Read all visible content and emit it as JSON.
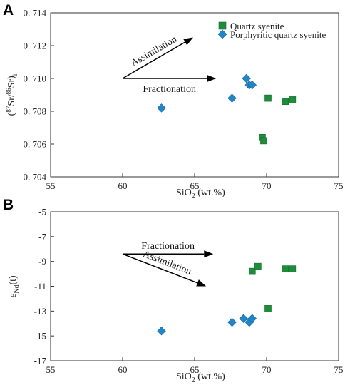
{
  "chart_data": [
    {
      "type": "scatter",
      "panel_label": "A",
      "xlabel_main": "SiO",
      "xlabel_sub": "2",
      "xlabel_tail": " (wt.%)",
      "ylabel_parts": [
        "(",
        "87",
        "Sr/",
        "86",
        "Sr)",
        "i"
      ],
      "xlim": [
        55,
        75
      ],
      "ylim": [
        0.704,
        0.714
      ],
      "x_ticks": [
        55,
        60,
        65,
        70,
        75
      ],
      "x_tick_labels": [
        "55",
        "60",
        "65",
        "70",
        "75"
      ],
      "y_ticks": [
        0.704,
        0.706,
        0.708,
        0.71,
        0.712,
        0.714
      ],
      "y_tick_labels": [
        "0. 704",
        "0. 706",
        "0. 708",
        "0. 710",
        "0. 712",
        "0. 714"
      ],
      "grid": false,
      "legend_placement": "top-right",
      "series": [
        {
          "name": "Quartz syenite",
          "marker": "square",
          "color": "#1e8c3a",
          "points": [
            {
              "x": 69.7,
              "y": 0.7064
            },
            {
              "x": 69.8,
              "y": 0.7062
            },
            {
              "x": 70.1,
              "y": 0.7088
            },
            {
              "x": 71.3,
              "y": 0.7086
            },
            {
              "x": 71.8,
              "y": 0.7087
            }
          ]
        },
        {
          "name": "Porphyritic quartz syenite",
          "marker": "diamond",
          "color": "#1f86c8",
          "points": [
            {
              "x": 62.7,
              "y": 0.7082
            },
            {
              "x": 67.6,
              "y": 0.7088
            },
            {
              "x": 68.6,
              "y": 0.71
            },
            {
              "x": 68.8,
              "y": 0.7096
            },
            {
              "x": 69.0,
              "y": 0.7096
            }
          ]
        }
      ],
      "annotations": [
        {
          "text": "Assimilation",
          "from": [
            60.0,
            0.71
          ],
          "to": [
            64.9,
            0.7125
          ],
          "text_side": "above"
        },
        {
          "text": "Fractionation",
          "from": [
            60.0,
            0.71
          ],
          "to": [
            66.5,
            0.71
          ],
          "text_side": "below"
        }
      ]
    },
    {
      "type": "scatter",
      "panel_label": "B",
      "xlabel_main": "SiO",
      "xlabel_sub": "2",
      "xlabel_tail": " (wt.%)",
      "ylabel_main": "ε",
      "ylabel_sub": "Nd",
      "ylabel_tail": "(t)",
      "xlim": [
        55,
        75
      ],
      "ylim": [
        -17,
        -5
      ],
      "x_ticks": [
        55,
        60,
        65,
        70,
        75
      ],
      "x_tick_labels": [
        "55",
        "60",
        "65",
        "70",
        "75"
      ],
      "y_ticks": [
        -17,
        -15,
        -13,
        -11,
        -9,
        -7,
        -5
      ],
      "y_tick_labels": [
        "-17",
        "-15",
        "-13",
        "-11",
        "-9",
        "-7",
        "-5"
      ],
      "grid": false,
      "series": [
        {
          "name": "Quartz syenite",
          "marker": "square",
          "color": "#1e8c3a",
          "points": [
            {
              "x": 69.0,
              "y": -9.8
            },
            {
              "x": 69.4,
              "y": -9.4
            },
            {
              "x": 70.1,
              "y": -12.8
            },
            {
              "x": 71.3,
              "y": -9.6
            },
            {
              "x": 71.8,
              "y": -9.6
            }
          ]
        },
        {
          "name": "Porphyritic quartz syenite",
          "marker": "diamond",
          "color": "#1f86c8",
          "points": [
            {
              "x": 62.7,
              "y": -14.6
            },
            {
              "x": 67.6,
              "y": -13.9
            },
            {
              "x": 68.4,
              "y": -13.6
            },
            {
              "x": 68.8,
              "y": -13.9
            },
            {
              "x": 69.0,
              "y": -13.6
            }
          ]
        }
      ],
      "annotations": [
        {
          "text": "Fractionation",
          "from": [
            60.0,
            -8.4
          ],
          "to": [
            66.3,
            -8.4
          ],
          "text_side": "above"
        },
        {
          "text": "Assimilation",
          "from": [
            60.0,
            -8.4
          ],
          "to": [
            65.8,
            -11.0
          ],
          "text_side": "above"
        }
      ]
    }
  ]
}
